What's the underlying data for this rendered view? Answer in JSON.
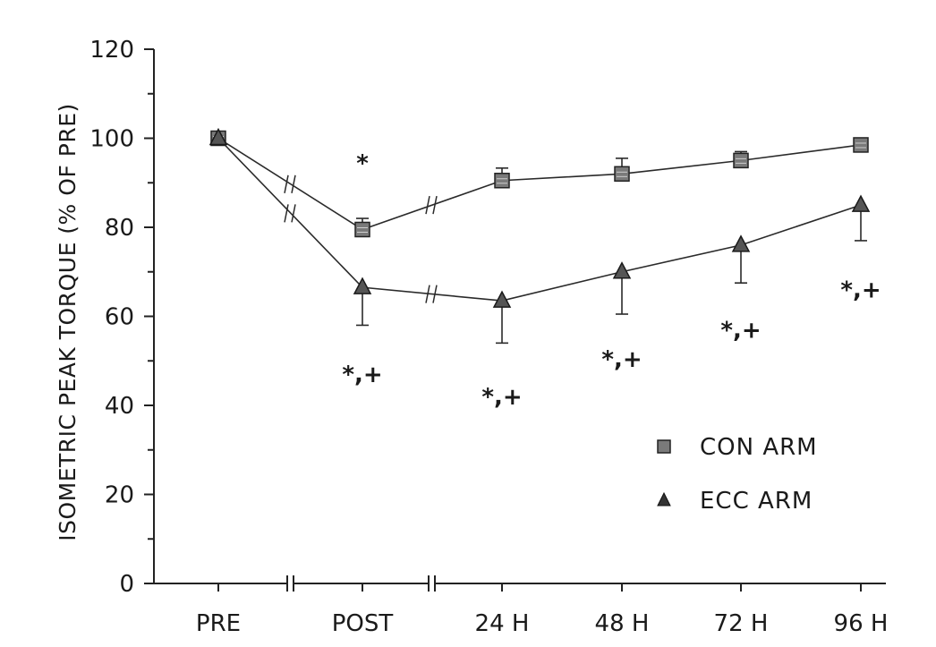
{
  "chart_data": {
    "type": "line",
    "title": "",
    "xlabel": "",
    "ylabel": "ISOMETRIC PEAK TORQUE (% OF PRE)",
    "categories": [
      "PRE",
      "POST",
      "24 H",
      "48 H",
      "72 H",
      "96 H"
    ],
    "ylim": [
      0,
      120
    ],
    "yticks": [
      "0",
      "20",
      "40",
      "60",
      "80",
      "100",
      "120"
    ],
    "grid": false,
    "legend_position": "bottom-right",
    "series": [
      {
        "name": "CON ARM",
        "marker": "square",
        "values": [
          100,
          79.5,
          90.5,
          92,
          95,
          98.5
        ],
        "errors": [
          0,
          2.5,
          2.8,
          3.5,
          2.0,
          1.0
        ],
        "error_direction": "up"
      },
      {
        "name": "ECC ARM",
        "marker": "triangle",
        "values": [
          100,
          66.5,
          63.5,
          70,
          76,
          85
        ],
        "errors": [
          0,
          8.5,
          9.5,
          9.5,
          8.5,
          8.0
        ],
        "error_direction": "down"
      }
    ],
    "annotations": [
      {
        "text": "*",
        "category": "POST",
        "y": 94.5
      },
      {
        "text": "*,+",
        "category": "POST",
        "y": 47
      },
      {
        "text": "*,+",
        "category": "24 H",
        "y": 42
      },
      {
        "text": "*,+",
        "category": "48 H",
        "y": 50.5
      },
      {
        "text": "*,+",
        "category": "72 H",
        "y": 57
      },
      {
        "text": "*,+",
        "category": "96 H",
        "y": 66
      }
    ]
  }
}
